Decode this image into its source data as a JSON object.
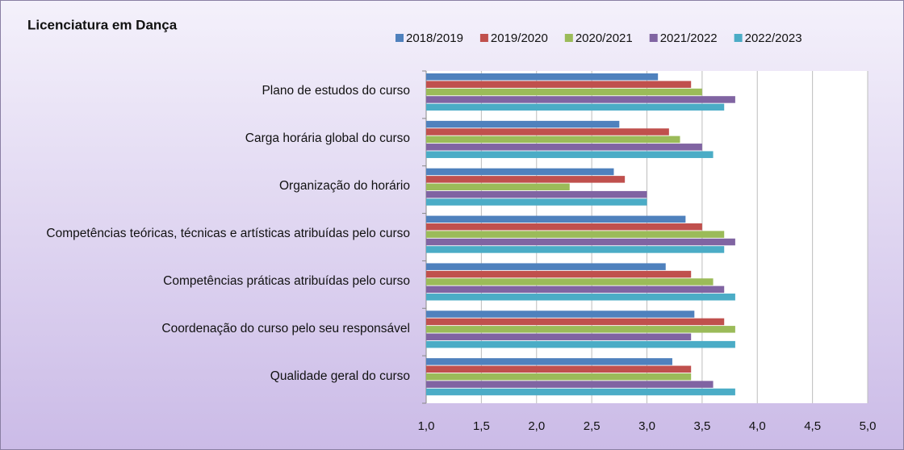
{
  "chart_data": {
    "type": "bar",
    "orientation": "horizontal",
    "title": "Licenciatura em Dança",
    "categories": [
      "Plano de estudos do curso",
      "Carga horária global do curso",
      "Organização do horário",
      "Competências teóricas, técnicas e artísticas atribuídas pelo curso",
      "Competências práticas atribuídas pelo curso",
      "Coordenação do curso pelo seu responsável",
      "Qualidade geral do curso"
    ],
    "series": [
      {
        "name": "2018/2019",
        "color": "#4f81bd",
        "values": [
          3.1,
          2.75,
          2.7,
          3.35,
          3.17,
          3.43,
          3.23
        ]
      },
      {
        "name": "2019/2020",
        "color": "#c0504d",
        "values": [
          3.4,
          3.2,
          2.8,
          3.5,
          3.4,
          3.7,
          3.4
        ]
      },
      {
        "name": "2020/2021",
        "color": "#9bbb59",
        "values": [
          3.5,
          3.3,
          2.3,
          3.7,
          3.6,
          3.8,
          3.4
        ]
      },
      {
        "name": "2021/2022",
        "color": "#8064a2",
        "values": [
          3.8,
          3.5,
          3.0,
          3.8,
          3.7,
          3.4,
          3.6
        ]
      },
      {
        "name": "2022/2023",
        "color": "#4bacc6",
        "values": [
          3.7,
          3.6,
          3.0,
          3.7,
          3.8,
          3.8,
          3.8
        ]
      }
    ],
    "xlim": [
      1,
      5
    ],
    "xticks": [
      {
        "value": 1,
        "label": "1,0"
      },
      {
        "value": 1.5,
        "label": "1,5"
      },
      {
        "value": 2,
        "label": "2,0"
      },
      {
        "value": 2.5,
        "label": "2,5"
      },
      {
        "value": 3,
        "label": "3,0"
      },
      {
        "value": 3.5,
        "label": "3,5"
      },
      {
        "value": 4,
        "label": "4,0"
      },
      {
        "value": 4.5,
        "label": "4,5"
      },
      {
        "value": 5,
        "label": "5,0"
      }
    ],
    "grid": true,
    "legend": "top-right"
  }
}
